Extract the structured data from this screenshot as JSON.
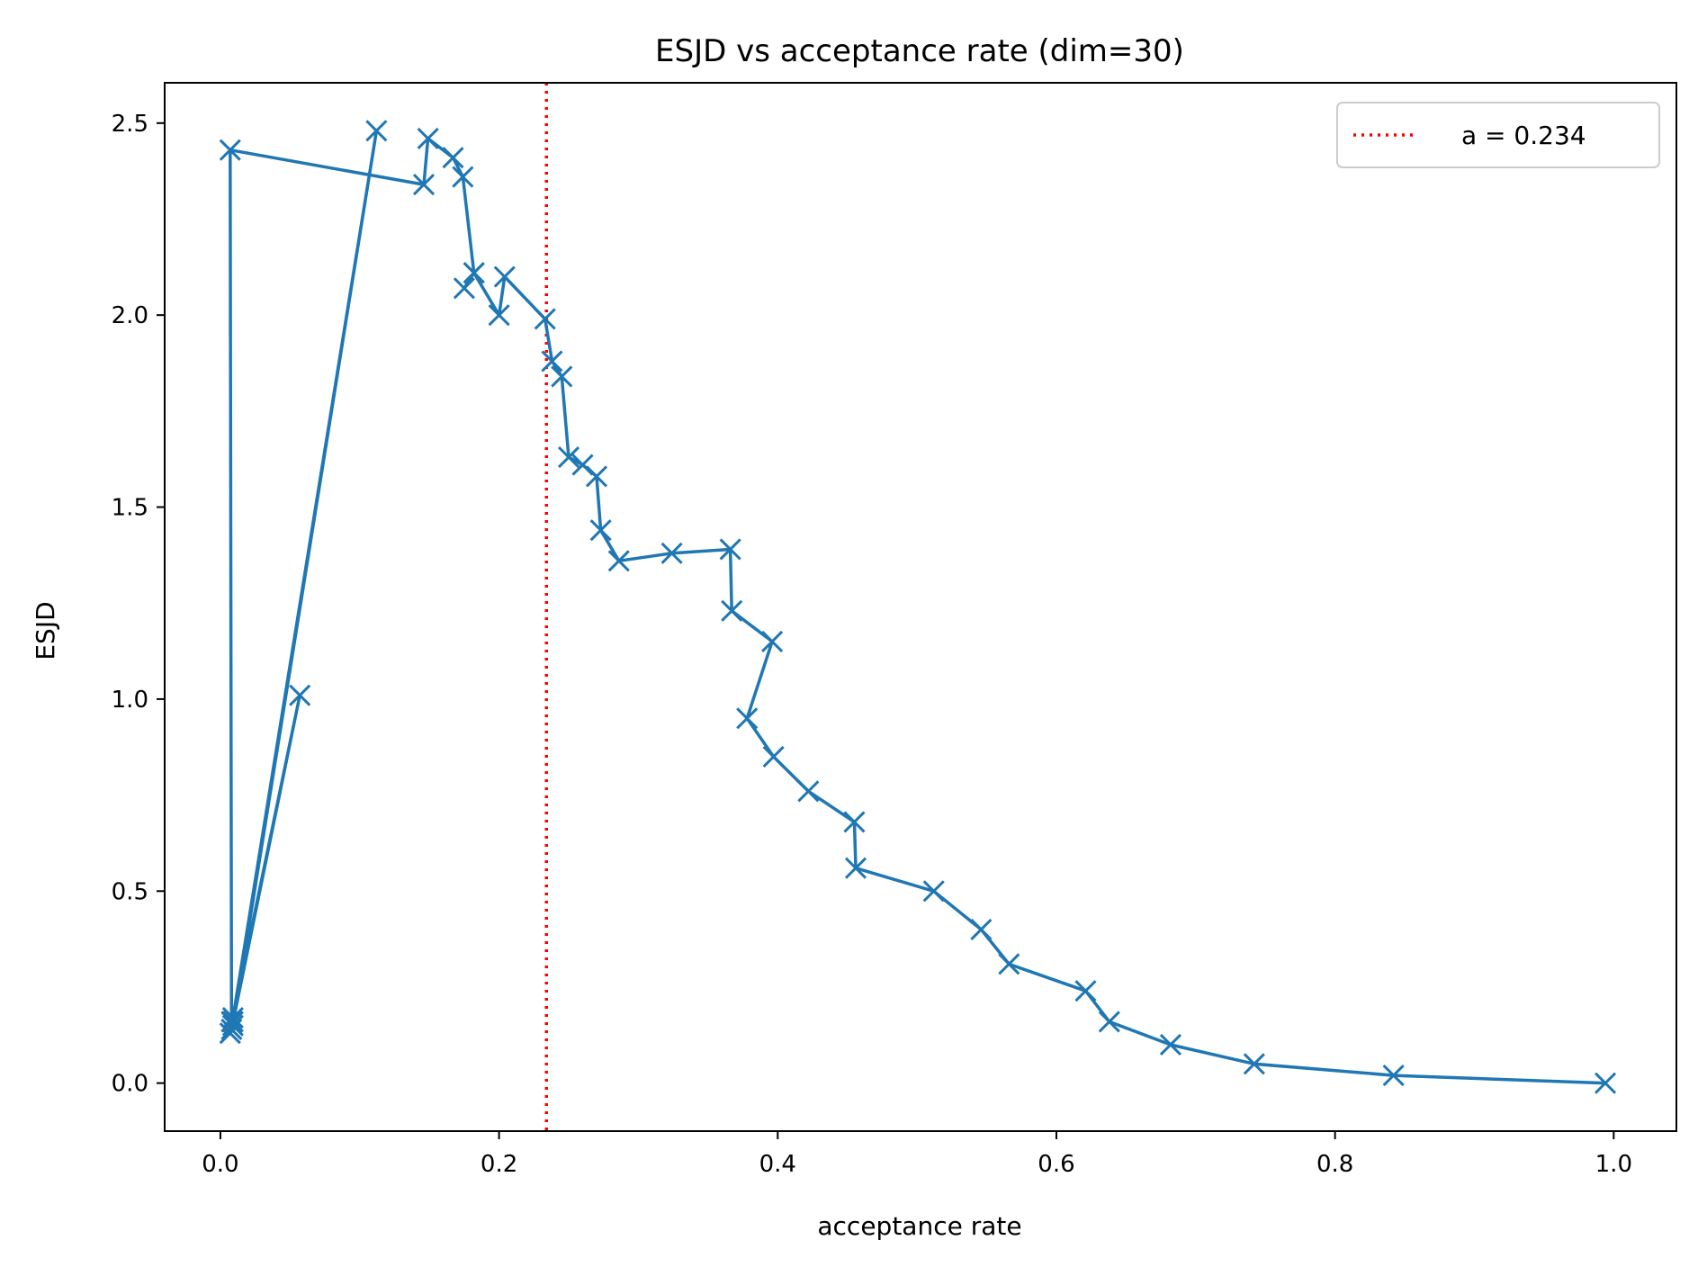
{
  "chart_data": {
    "type": "line",
    "title": "ESJD vs acceptance rate (dim=30)",
    "xlabel": "acceptance rate",
    "ylabel": "ESJD",
    "xlim": [
      -0.04,
      1.045
    ],
    "ylim": [
      -0.125,
      2.605
    ],
    "xticks": [
      0.0,
      0.2,
      0.4,
      0.6,
      0.8,
      1.0
    ],
    "xtick_labels": [
      "0.0",
      "0.2",
      "0.4",
      "0.6",
      "0.8",
      "1.0"
    ],
    "yticks": [
      0.0,
      0.5,
      1.0,
      1.5,
      2.0,
      2.5
    ],
    "ytick_labels": [
      "0.0",
      "0.5",
      "1.0",
      "1.5",
      "2.0",
      "2.5"
    ],
    "grid": false,
    "legend_position": "top-right",
    "series": [
      {
        "name": "ESJD",
        "color": "#1f77b4",
        "marker": "x",
        "x": [
          0.994,
          0.842,
          0.742,
          0.682,
          0.638,
          0.621,
          0.566,
          0.546,
          0.512,
          0.456,
          0.455,
          0.422,
          0.397,
          0.378,
          0.396,
          0.367,
          0.366,
          0.324,
          0.286,
          0.273,
          0.27,
          0.26,
          0.25,
          0.245,
          0.238,
          0.233,
          0.204,
          0.2,
          0.182,
          0.175,
          0.182,
          0.174,
          0.167,
          0.149,
          0.146,
          0.007,
          0.008,
          0.009,
          0.112,
          0.009,
          0.057,
          0.008,
          0.007,
          0.009
        ],
        "y": [
          0.0,
          0.02,
          0.05,
          0.1,
          0.16,
          0.24,
          0.31,
          0.4,
          0.5,
          0.56,
          0.68,
          0.76,
          0.85,
          0.95,
          1.15,
          1.23,
          1.39,
          1.38,
          1.36,
          1.44,
          1.58,
          1.61,
          1.63,
          1.84,
          1.88,
          1.99,
          2.1,
          2.0,
          2.11,
          2.07,
          2.11,
          2.36,
          2.41,
          2.46,
          2.34,
          2.43,
          0.16,
          0.15,
          2.48,
          0.17,
          1.01,
          0.14,
          0.13,
          0.16
        ]
      }
    ],
    "reference_lines": [
      {
        "orientation": "vertical",
        "x": 0.234,
        "color": "#ff0000",
        "style": "dotted",
        "label": "a = 0.234"
      }
    ]
  }
}
